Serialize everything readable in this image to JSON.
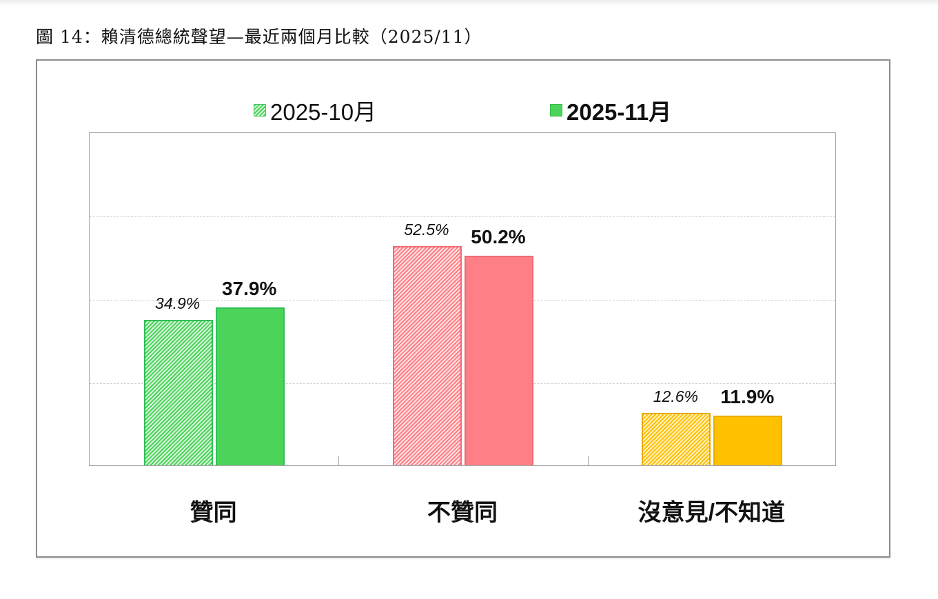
{
  "figure": {
    "title": "圖 14：賴清德總統聲望—最近兩個月比較（2025/11）"
  },
  "legend": [
    {
      "label": "2025-10月",
      "style": "hatched",
      "bold": false
    },
    {
      "label": "2025-11月",
      "style": "solid",
      "bold": true
    }
  ],
  "categories": [
    {
      "label": "贊同",
      "color": "#4cd45a",
      "border": "#2fbf55",
      "hatch_light": "#d8f5dc"
    },
    {
      "label": "不贊同",
      "color": "#ff7f86",
      "border": "#f06a72",
      "hatch_light": "#ffe2e4"
    },
    {
      "label": "沒意見/不知道",
      "color": "#ffc000",
      "border": "#e6ad00",
      "hatch_light": "#fff1c2"
    }
  ],
  "labels": {
    "prev": [
      "34.9%",
      "52.5%",
      "12.6%"
    ],
    "curr": [
      "37.9%",
      "50.2%",
      "11.9%"
    ]
  },
  "chart_data": {
    "type": "bar",
    "title": "圖 14：賴清德總統聲望—最近兩個月比較（2025/11）",
    "categories": [
      "贊同",
      "不贊同",
      "沒意見/不知道"
    ],
    "series": [
      {
        "name": "2025-10月",
        "values": [
          34.9,
          52.5,
          12.6
        ],
        "style": "hatched"
      },
      {
        "name": "2025-11月",
        "values": [
          37.9,
          50.2,
          11.9
        ],
        "style": "solid"
      }
    ],
    "xlabel": "",
    "ylabel": "",
    "ylim": [
      0,
      80
    ],
    "ylim_source": "inferred from gridline spacing; no y-axis tick labels are shown",
    "grid": true,
    "gridlines_at": [
      20,
      40,
      60
    ],
    "legend_position": "top",
    "value_unit": "%"
  }
}
